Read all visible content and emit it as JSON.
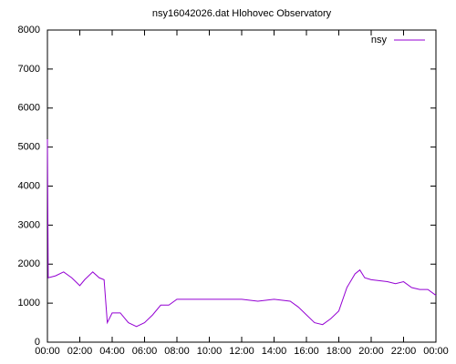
{
  "chart_data": {
    "type": "line",
    "title": "nsy16042026.dat Hlohovec Observatory",
    "x": [
      0,
      0.05,
      0.5,
      1.0,
      1.5,
      2.0,
      2.3,
      2.8,
      3.2,
      3.5,
      3.7,
      4.0,
      4.5,
      5.0,
      5.5,
      6.0,
      6.5,
      7.0,
      7.5,
      8.0,
      9.0,
      10.0,
      11.0,
      12.0,
      13.0,
      14.0,
      15.0,
      15.5,
      16.0,
      16.5,
      17.0,
      17.5,
      18.0,
      18.5,
      19.0,
      19.3,
      19.6,
      20.0,
      21.0,
      21.5,
      22.0,
      22.5,
      23.0,
      23.5,
      24.0
    ],
    "series": [
      {
        "name": "nsy",
        "color": "#9400d3",
        "values": [
          5200,
          1650,
          1700,
          1800,
          1650,
          1450,
          1600,
          1800,
          1650,
          1600,
          500,
          750,
          750,
          500,
          400,
          500,
          700,
          950,
          950,
          1100,
          1100,
          1100,
          1100,
          1100,
          1050,
          1100,
          1050,
          900,
          700,
          500,
          450,
          600,
          800,
          1400,
          1750,
          1850,
          1650,
          1600,
          1550,
          1500,
          1550,
          1400,
          1350,
          1350,
          1200
        ]
      }
    ],
    "xlim": [
      0,
      24
    ],
    "xticks": [
      {
        "value": 0,
        "label": "00:00"
      },
      {
        "value": 2,
        "label": "02:00"
      },
      {
        "value": 4,
        "label": "04:00"
      },
      {
        "value": 6,
        "label": "06:00"
      },
      {
        "value": 8,
        "label": "08:00"
      },
      {
        "value": 10,
        "label": "10:00"
      },
      {
        "value": 12,
        "label": "12:00"
      },
      {
        "value": 14,
        "label": "14:00"
      },
      {
        "value": 16,
        "label": "16:00"
      },
      {
        "value": 18,
        "label": "18:00"
      },
      {
        "value": 20,
        "label": "20:00"
      },
      {
        "value": 22,
        "label": "22:00"
      },
      {
        "value": 24,
        "label": "00:00"
      }
    ],
    "ylim": [
      0,
      8000
    ],
    "yticks": [
      0,
      1000,
      2000,
      3000,
      4000,
      5000,
      6000,
      7000,
      8000
    ],
    "grid": false,
    "legend": "top right"
  }
}
